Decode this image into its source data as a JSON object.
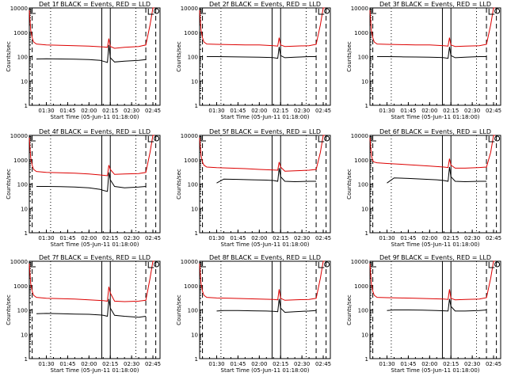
{
  "figure": {
    "xtitle": "Start Time (05-Jun-11 01:18:00)",
    "ytitle": "Counts/sec"
  },
  "colors": {
    "events": "#000000",
    "lld": "#dd0000",
    "axes": "#000000"
  },
  "chart_data": [
    {
      "type": "line",
      "title": "Det 1f BLACK = Events, RED = LLD",
      "xlabel": "Start Time (05-Jun-11 01:18:00)",
      "ylabel": "Counts/sec",
      "ylim": [
        1,
        10000
      ],
      "yscale": "log",
      "ytick_labels": [
        "1",
        "10",
        "100",
        "1000",
        "10000"
      ],
      "xtick_labels": [
        "01:30",
        "01:45",
        "02:00",
        "02:15",
        "02:30",
        "02:45"
      ],
      "series": [
        {
          "name": "Events",
          "color": "#000000",
          "x": [
            "01:23",
            "01:30",
            "01:40",
            "01:50",
            "02:00",
            "02:08",
            "02:10",
            "02:13",
            "02:14",
            "02:15",
            "02:18",
            "02:25",
            "02:35",
            "02:40"
          ],
          "y": [
            80,
            82,
            80,
            78,
            75,
            70,
            65,
            58,
            300,
            90,
            60,
            65,
            70,
            75
          ]
        },
        {
          "name": "LLD",
          "color": "#dd0000",
          "x": [
            "01:18",
            "01:19",
            "01:20",
            "01:21",
            "01:23",
            "01:30",
            "01:40",
            "01:50",
            "02:00",
            "02:10",
            "02:13",
            "02:14",
            "02:15",
            "02:18",
            "02:25",
            "02:35",
            "02:40",
            "02:43",
            "02:45",
            "02:46"
          ],
          "y": [
            8000,
            1200,
            600,
            400,
            330,
            300,
            290,
            280,
            270,
            250,
            240,
            550,
            260,
            220,
            240,
            260,
            300,
            2000,
            10000,
            10000
          ]
        }
      ]
    },
    {
      "type": "line",
      "title": "Det 2f BLACK = Events, RED = LLD",
      "xlabel": "Start Time (05-Jun-11 01:18:00)",
      "ylabel": "Counts/sec",
      "ylim": [
        1,
        10000
      ],
      "yscale": "log",
      "ytick_labels": [
        "1",
        "10",
        "100",
        "1000",
        "10000"
      ],
      "xtick_labels": [
        "01:30",
        "01:45",
        "02:00",
        "02:15",
        "02:30",
        "02:45"
      ],
      "series": [
        {
          "name": "Events",
          "color": "#000000",
          "x": [
            "01:23",
            "01:30",
            "01:40",
            "01:50",
            "02:00",
            "02:08",
            "02:10",
            "02:13",
            "02:14",
            "02:15",
            "02:18",
            "02:25",
            "02:35",
            "02:40"
          ],
          "y": [
            100,
            100,
            98,
            96,
            95,
            92,
            90,
            85,
            250,
            110,
            90,
            95,
            100,
            100
          ]
        },
        {
          "name": "LLD",
          "color": "#dd0000",
          "x": [
            "01:18",
            "01:19",
            "01:20",
            "01:21",
            "01:23",
            "01:30",
            "01:40",
            "01:50",
            "02:00",
            "02:10",
            "02:13",
            "02:14",
            "02:15",
            "02:18",
            "02:25",
            "02:35",
            "02:40",
            "02:43",
            "02:45",
            "02:46"
          ],
          "y": [
            8000,
            1200,
            600,
            400,
            330,
            320,
            310,
            300,
            300,
            280,
            270,
            600,
            300,
            260,
            270,
            280,
            320,
            2000,
            10000,
            10000
          ]
        }
      ]
    },
    {
      "type": "line",
      "title": "Det 3f BLACK = Events, RED = LLD",
      "xlabel": "Start Time (05-Jun-11 01:18:00)",
      "ylabel": "Counts/sec",
      "ylim": [
        1,
        10000
      ],
      "yscale": "log",
      "ytick_labels": [
        "1",
        "10",
        "100",
        "1000",
        "10000"
      ],
      "xtick_labels": [
        "01:30",
        "01:45",
        "02:00",
        "02:15",
        "02:30",
        "02:45"
      ],
      "series": [
        {
          "name": "Events",
          "color": "#000000",
          "x": [
            "01:23",
            "01:30",
            "01:40",
            "01:50",
            "02:00",
            "02:08",
            "02:10",
            "02:13",
            "02:14",
            "02:15",
            "02:18",
            "02:25",
            "02:35",
            "02:40"
          ],
          "y": [
            100,
            100,
            98,
            96,
            95,
            92,
            90,
            85,
            250,
            110,
            90,
            95,
            100,
            100
          ]
        },
        {
          "name": "LLD",
          "color": "#dd0000",
          "x": [
            "01:18",
            "01:19",
            "01:20",
            "01:21",
            "01:23",
            "01:30",
            "01:40",
            "01:50",
            "02:00",
            "02:10",
            "02:13",
            "02:14",
            "02:15",
            "02:18",
            "02:25",
            "02:35",
            "02:40",
            "02:43",
            "02:45",
            "02:46"
          ],
          "y": [
            8000,
            1200,
            600,
            400,
            330,
            320,
            310,
            300,
            300,
            280,
            270,
            600,
            300,
            260,
            270,
            280,
            320,
            2000,
            10000,
            10000
          ]
        }
      ]
    },
    {
      "type": "line",
      "title": "Det 4f BLACK = Events, RED = LLD",
      "xlabel": "Start Time (05-Jun-11 01:18:00)",
      "ylabel": "Counts/sec",
      "ylim": [
        1,
        10000
      ],
      "yscale": "log",
      "ytick_labels": [
        "1",
        "10",
        "100",
        "1000",
        "10000"
      ],
      "xtick_labels": [
        "01:30",
        "01:45",
        "02:00",
        "02:15",
        "02:30",
        "02:45"
      ],
      "series": [
        {
          "name": "Events",
          "color": "#000000",
          "x": [
            "01:23",
            "01:30",
            "01:40",
            "01:50",
            "02:00",
            "02:08",
            "02:10",
            "02:13",
            "02:14",
            "02:15",
            "02:18",
            "02:25",
            "02:35",
            "02:40"
          ],
          "y": [
            80,
            80,
            78,
            75,
            70,
            60,
            55,
            50,
            300,
            150,
            80,
            70,
            75,
            80
          ]
        },
        {
          "name": "LLD",
          "color": "#dd0000",
          "x": [
            "01:18",
            "01:19",
            "01:20",
            "01:21",
            "01:23",
            "01:30",
            "01:40",
            "01:50",
            "02:00",
            "02:10",
            "02:13",
            "02:14",
            "02:15",
            "02:18",
            "02:25",
            "02:35",
            "02:40",
            "02:43",
            "02:45",
            "02:46"
          ],
          "y": [
            8000,
            1200,
            600,
            400,
            330,
            300,
            290,
            280,
            260,
            230,
            220,
            600,
            400,
            250,
            260,
            270,
            300,
            2000,
            10000,
            10000
          ]
        }
      ]
    },
    {
      "type": "line",
      "title": "Det 5f BLACK = Events, RED = LLD",
      "xlabel": "Start Time (05-Jun-11 01:18:00)",
      "ylabel": "Counts/sec",
      "ylim": [
        1,
        10000
      ],
      "yscale": "log",
      "ytick_labels": [
        "1",
        "10",
        "100",
        "1000",
        "10000"
      ],
      "xtick_labels": [
        "01:30",
        "01:45",
        "02:00",
        "02:15",
        "02:30",
        "02:45"
      ],
      "series": [
        {
          "name": "Events",
          "color": "#000000",
          "x": [
            "01:30",
            "01:35",
            "01:45",
            "01:55",
            "02:05",
            "02:10",
            "02:13",
            "02:14",
            "02:15",
            "02:18",
            "02:25",
            "02:35",
            "02:40"
          ],
          "y": [
            110,
            160,
            155,
            150,
            145,
            140,
            130,
            450,
            200,
            130,
            125,
            130,
            130
          ]
        },
        {
          "name": "LLD",
          "color": "#dd0000",
          "x": [
            "01:18",
            "01:19",
            "01:20",
            "01:21",
            "01:23",
            "01:30",
            "01:40",
            "01:50",
            "02:00",
            "02:10",
            "02:13",
            "02:14",
            "02:15",
            "02:18",
            "02:25",
            "02:35",
            "02:40",
            "02:43",
            "02:45",
            "02:46"
          ],
          "y": [
            8000,
            1500,
            800,
            600,
            500,
            470,
            450,
            430,
            400,
            380,
            370,
            800,
            500,
            340,
            350,
            370,
            400,
            2000,
            10000,
            10000
          ]
        }
      ]
    },
    {
      "type": "line",
      "title": "Det 6f BLACK = Events, RED = LLD",
      "xlabel": "Start Time (05-Jun-11 01:18:00)",
      "ylabel": "Counts/sec",
      "ylim": [
        1,
        10000
      ],
      "yscale": "log",
      "ytick_labels": [
        "1",
        "10",
        "100",
        "1000",
        "10000"
      ],
      "xtick_labels": [
        "01:30",
        "01:45",
        "02:00",
        "02:15",
        "02:30",
        "02:45"
      ],
      "series": [
        {
          "name": "Events",
          "color": "#000000",
          "x": [
            "01:30",
            "01:35",
            "01:45",
            "01:55",
            "02:05",
            "02:10",
            "02:13",
            "02:14",
            "02:15",
            "02:18",
            "02:25",
            "02:35",
            "02:40"
          ],
          "y": [
            110,
            180,
            170,
            160,
            150,
            140,
            130,
            500,
            200,
            130,
            125,
            130,
            130
          ]
        },
        {
          "name": "LLD",
          "color": "#dd0000",
          "x": [
            "01:18",
            "01:19",
            "01:20",
            "01:21",
            "01:23",
            "01:30",
            "01:40",
            "01:50",
            "02:00",
            "02:10",
            "02:13",
            "02:14",
            "02:15",
            "02:18",
            "02:25",
            "02:35",
            "02:40",
            "02:43",
            "02:45",
            "02:46"
          ],
          "y": [
            8000,
            1500,
            900,
            800,
            750,
            700,
            650,
            600,
            550,
            500,
            480,
            1100,
            600,
            450,
            450,
            480,
            500,
            2000,
            10000,
            10000
          ]
        }
      ]
    },
    {
      "type": "line",
      "title": "Det 7f BLACK = Events, RED = LLD",
      "xlabel": "Start Time (05-Jun-11 01:18:00)",
      "ylabel": "Counts/sec",
      "ylim": [
        1,
        10000
      ],
      "yscale": "log",
      "ytick_labels": [
        "1",
        "10",
        "100",
        "1000",
        "10000"
      ],
      "xtick_labels": [
        "01:30",
        "01:45",
        "02:00",
        "02:15",
        "02:30",
        "02:45"
      ],
      "series": [
        {
          "name": "Events",
          "color": "#000000",
          "x": [
            "01:23",
            "01:30",
            "01:40",
            "01:50",
            "02:00",
            "02:08",
            "02:10",
            "02:13",
            "02:14",
            "02:15",
            "02:18",
            "02:25",
            "02:35",
            "02:40"
          ],
          "y": [
            70,
            72,
            70,
            68,
            66,
            62,
            60,
            55,
            280,
            120,
            60,
            55,
            50,
            55
          ]
        },
        {
          "name": "LLD",
          "color": "#dd0000",
          "x": [
            "01:18",
            "01:19",
            "01:20",
            "01:21",
            "01:23",
            "01:30",
            "01:40",
            "01:50",
            "02:00",
            "02:10",
            "02:13",
            "02:14",
            "02:15",
            "02:18",
            "02:25",
            "02:35",
            "02:40",
            "02:43",
            "02:45",
            "02:46"
          ],
          "y": [
            8000,
            1200,
            600,
            400,
            330,
            300,
            290,
            280,
            260,
            240,
            230,
            900,
            500,
            230,
            220,
            230,
            250,
            2000,
            10000,
            10000
          ]
        }
      ]
    },
    {
      "type": "line",
      "title": "Det 8f BLACK = Events, RED = LLD",
      "xlabel": "Start Time (05-Jun-11 01:18:00)",
      "ylabel": "Counts/sec",
      "ylim": [
        1,
        10000
      ],
      "yscale": "log",
      "ytick_labels": [
        "1",
        "10",
        "100",
        "1000",
        "10000"
      ],
      "xtick_labels": [
        "01:30",
        "01:45",
        "02:00",
        "02:15",
        "02:30",
        "02:45"
      ],
      "series": [
        {
          "name": "Events",
          "color": "#000000",
          "x": [
            "01:30",
            "01:35",
            "01:45",
            "01:55",
            "02:05",
            "02:10",
            "02:13",
            "02:14",
            "02:15",
            "02:18",
            "02:25",
            "02:35",
            "02:40"
          ],
          "y": [
            90,
            95,
            95,
            92,
            90,
            88,
            85,
            280,
            120,
            80,
            85,
            90,
            95
          ]
        },
        {
          "name": "LLD",
          "color": "#dd0000",
          "x": [
            "01:18",
            "01:19",
            "01:20",
            "01:21",
            "01:23",
            "01:30",
            "01:40",
            "01:50",
            "02:00",
            "02:10",
            "02:13",
            "02:14",
            "02:15",
            "02:18",
            "02:25",
            "02:35",
            "02:40",
            "02:43",
            "02:45",
            "02:46"
          ],
          "y": [
            8000,
            1200,
            600,
            400,
            330,
            310,
            300,
            290,
            280,
            270,
            260,
            700,
            300,
            250,
            260,
            270,
            300,
            2000,
            10000,
            10000
          ]
        }
      ]
    },
    {
      "type": "line",
      "title": "Det 9f BLACK = Events, RED = LLD",
      "xlabel": "Start Time (05-Jun-11 01:18:00)",
      "ylabel": "Counts/sec",
      "ylim": [
        1,
        10000
      ],
      "yscale": "log",
      "ytick_labels": [
        "1",
        "10",
        "100",
        "1000",
        "10000"
      ],
      "xtick_labels": [
        "01:30",
        "01:45",
        "02:00",
        "02:15",
        "02:30",
        "02:45"
      ],
      "series": [
        {
          "name": "Events",
          "color": "#000000",
          "x": [
            "01:30",
            "01:35",
            "01:45",
            "01:55",
            "02:05",
            "02:10",
            "02:13",
            "02:14",
            "02:15",
            "02:18",
            "02:25",
            "02:35",
            "02:40"
          ],
          "y": [
            95,
            100,
            100,
            98,
            95,
            92,
            90,
            280,
            140,
            90,
            90,
            95,
            100
          ]
        },
        {
          "name": "LLD",
          "color": "#dd0000",
          "x": [
            "01:18",
            "01:19",
            "01:20",
            "01:21",
            "01:23",
            "01:30",
            "01:40",
            "01:50",
            "02:00",
            "02:10",
            "02:13",
            "02:14",
            "02:15",
            "02:18",
            "02:25",
            "02:35",
            "02:40",
            "02:43",
            "02:45",
            "02:46"
          ],
          "y": [
            8000,
            1200,
            600,
            400,
            330,
            320,
            310,
            300,
            290,
            280,
            270,
            700,
            300,
            260,
            270,
            280,
            320,
            2000,
            10000,
            10000
          ]
        }
      ]
    }
  ]
}
